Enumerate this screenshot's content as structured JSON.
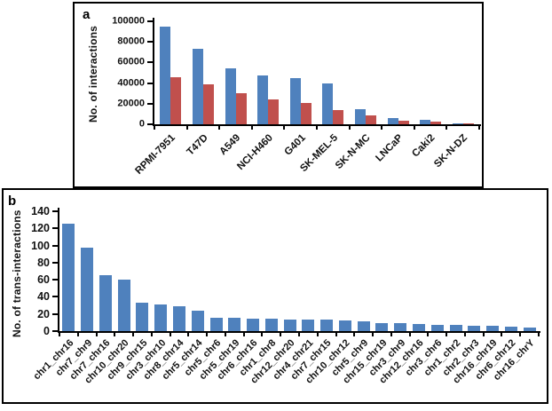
{
  "colors": {
    "bar_blue": "#4F81BD",
    "bar_red": "#C0504D",
    "axis": "#000000",
    "text": "#111111",
    "panel_border": "#000000",
    "background": "#ffffff"
  },
  "chart_data": [
    {
      "type": "bar",
      "panel": "a",
      "panel_label": "a",
      "title": "",
      "xlabel": "",
      "ylabel": "No. of interactions",
      "ylim": [
        0,
        100000
      ],
      "yticks": [
        0,
        20000,
        40000,
        60000,
        80000,
        100000
      ],
      "grid": false,
      "legend_position": "none",
      "categories": [
        "RPMI-7951",
        "T47D",
        "A549",
        "NCI-H460",
        "G401",
        "SK-MEL-5",
        "SK-N-MC",
        "LNCaP",
        "Caki2",
        "SK-N-DZ"
      ],
      "series": [
        {
          "name": "series-1-blue",
          "color": "#4F81BD",
          "values": [
            95000,
            73000,
            54000,
            47500,
            45000,
            39500,
            14500,
            5800,
            4000,
            1200
          ]
        },
        {
          "name": "series-2-red",
          "color": "#C0504D",
          "values": [
            46000,
            39000,
            30000,
            24000,
            21000,
            14000,
            8800,
            3300,
            2200,
            700
          ]
        }
      ]
    },
    {
      "type": "bar",
      "panel": "b",
      "panel_label": "b",
      "title": "",
      "xlabel": "",
      "ylabel": "No. of trans-interactions",
      "ylim": [
        0,
        140
      ],
      "yticks": [
        0,
        20,
        40,
        60,
        80,
        100,
        120,
        140
      ],
      "grid": false,
      "legend_position": "none",
      "categories": [
        "chr1_chr16",
        "chr7_chr9",
        "chr7_chr16",
        "chr10_chr20",
        "chr9_chr15",
        "chr3_chr10",
        "chr8_chr14",
        "chr5_chr14",
        "chr5_chr6",
        "chr5_chr19",
        "chr6_chr16",
        "chr1_chr8",
        "chr12_chr20",
        "chr4_chr21",
        "chr7_chr15",
        "chr10_chr12",
        "chr5_chr9",
        "chr15_chr19",
        "chr3_chr9",
        "chr12_chr16",
        "chr3_chr6",
        "chr1_chr2",
        "chr2_chr3",
        "chr16_chr19",
        "chr6_chr12",
        "chr16_chrY"
      ],
      "series": [
        {
          "name": "series-1-blue",
          "color": "#4F81BD",
          "values": [
            126,
            98,
            65,
            60,
            33,
            31,
            29,
            24,
            16,
            16,
            15,
            15,
            14,
            13,
            13,
            12,
            11,
            9,
            9,
            8,
            7,
            7,
            6,
            6,
            5,
            4
          ]
        }
      ]
    }
  ]
}
